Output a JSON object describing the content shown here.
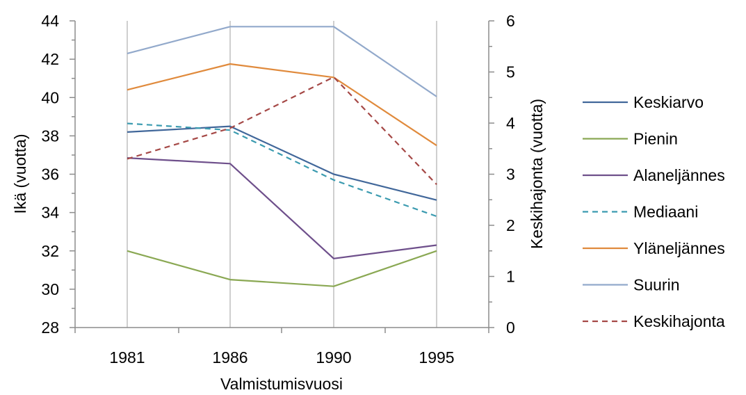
{
  "chart_data": {
    "type": "line",
    "categories": [
      "1981",
      "1986",
      "1990",
      "1995"
    ],
    "xlabel": "Valmistumisvuosi",
    "ylabel": "Ikä (vuotta)",
    "y2label": "Keskihajonta (vuotta)",
    "ylim": [
      28,
      44
    ],
    "y2lim": [
      0,
      6
    ],
    "yticks": [
      "28",
      "30",
      "32",
      "34",
      "36",
      "38",
      "40",
      "42",
      "44"
    ],
    "y2ticks": [
      "0",
      "1",
      "2",
      "3",
      "4",
      "5",
      "6"
    ],
    "grid": "vertical",
    "legend_position": "right",
    "series": [
      {
        "name": "Keskiarvo",
        "axis": "left",
        "dashed": false,
        "color": "#41679a",
        "values": [
          38.2,
          38.5,
          36.0,
          34.65
        ]
      },
      {
        "name": "Pienin",
        "axis": "left",
        "dashed": false,
        "color": "#8aa853",
        "values": [
          32.0,
          30.5,
          30.15,
          32.0
        ]
      },
      {
        "name": "Alaneljännes",
        "axis": "left",
        "dashed": false,
        "color": "#6e4f8b",
        "values": [
          36.85,
          36.55,
          31.6,
          32.3
        ]
      },
      {
        "name": "Mediaani",
        "axis": "left",
        "dashed": true,
        "color": "#3b9bb0",
        "values": [
          38.65,
          38.3,
          35.7,
          33.8
        ]
      },
      {
        "name": "Yläneljännes",
        "axis": "left",
        "dashed": false,
        "color": "#e08a3c",
        "values": [
          40.4,
          41.75,
          41.05,
          37.5
        ]
      },
      {
        "name": "Suurin",
        "axis": "left",
        "dashed": false,
        "color": "#92a9cb",
        "values": [
          42.3,
          43.7,
          43.7,
          40.05
        ]
      },
      {
        "name": "Keskihajonta",
        "axis": "right",
        "dashed": true,
        "color": "#a54846",
        "values": [
          3.3,
          3.9,
          4.9,
          2.8
        ]
      }
    ]
  }
}
